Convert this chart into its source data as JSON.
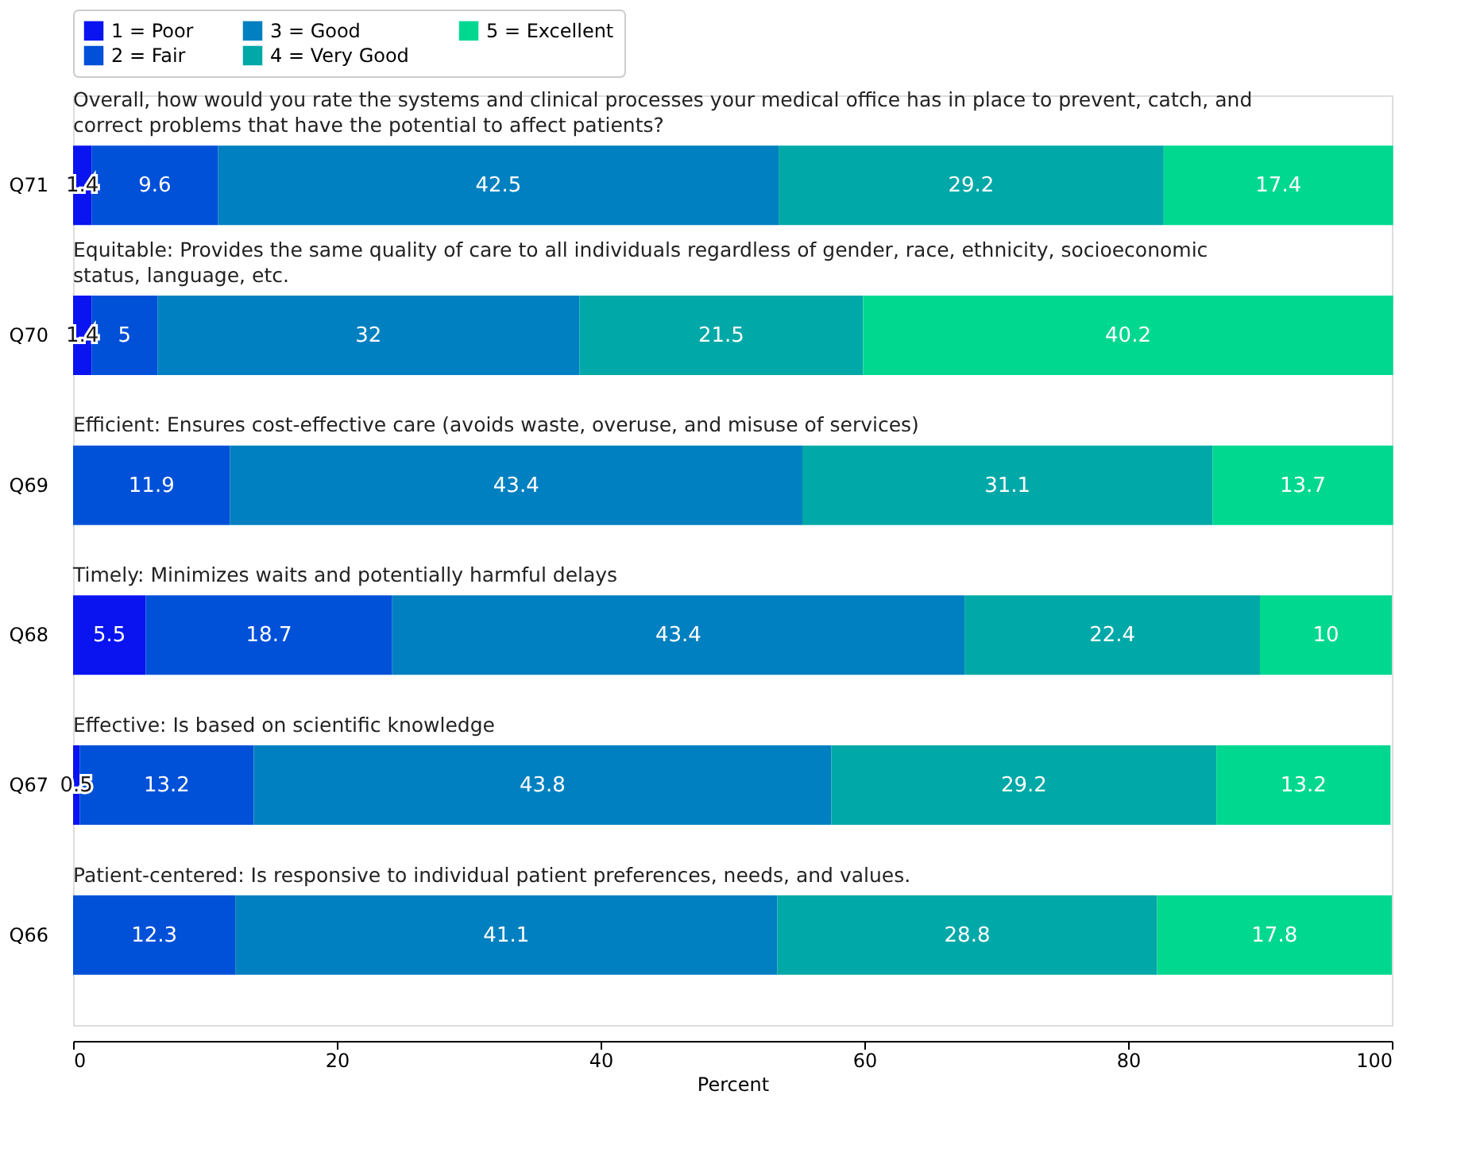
{
  "chart_data": {
    "type": "bar",
    "orientation": "horizontal",
    "stacked": true,
    "legend": "top left",
    "categories": [
      "Q71",
      "Q70",
      "Q69",
      "Q68",
      "Q67",
      "Q66"
    ],
    "series": [
      {
        "name": "1 = Poor",
        "color": "#0a14f0",
        "values": [
          1.4,
          1.4,
          0,
          5.5,
          0.5,
          0
        ],
        "value_labels": [
          "1.4",
          "1.4",
          null,
          "5.5",
          "0.5",
          null
        ]
      },
      {
        "name": "2 = Fair",
        "color": "#0050d8",
        "values": [
          9.6,
          5,
          11.9,
          18.7,
          13.2,
          12.3
        ],
        "value_labels": [
          "9.6",
          "5",
          "11.9",
          "18.7",
          "13.2",
          "12.3"
        ]
      },
      {
        "name": "3 = Good",
        "color": "#0080c0",
        "values": [
          42.5,
          32,
          43.4,
          43.4,
          43.8,
          41.1
        ],
        "value_labels": [
          "42.5",
          "32",
          "43.4",
          "43.4",
          "43.8",
          "41.1"
        ]
      },
      {
        "name": "4 = Very Good",
        "color": "#00a8a8",
        "values": [
          29.2,
          21.5,
          31.1,
          22.4,
          29.2,
          28.8
        ],
        "value_labels": [
          "29.2",
          "21.5",
          "31.1",
          "22.4",
          "29.2",
          "28.8"
        ]
      },
      {
        "name": "5 = Excellent",
        "color": "#00d890",
        "values": [
          17.4,
          40.2,
          13.7,
          10,
          13.2,
          17.8
        ],
        "value_labels": [
          "17.4",
          "40.2",
          "13.7",
          "10",
          "13.2",
          "17.8"
        ]
      }
    ],
    "annotations": [
      "Overall, how would you rate the systems and clinical processes your medical office has in place to prevent, catch, and correct problems that have the potential to affect patients?",
      "Equitable: Provides the same quality of care to all individuals regardless of gender, race, ethnicity, socioeconomic status, language, etc.",
      "Efficient: Ensures cost-effective care (avoids waste, overuse, and misuse of services)",
      "Timely: Minimizes waits and potentially harmful delays",
      "Effective: Is based on scientific knowledge",
      "Patient-centered: Is responsive to individual patient preferences, needs, and values."
    ],
    "xlabel": "Percent",
    "xlim": [
      0,
      100
    ],
    "xticks": [
      0,
      20,
      40,
      60,
      80,
      100
    ],
    "grid": false
  }
}
